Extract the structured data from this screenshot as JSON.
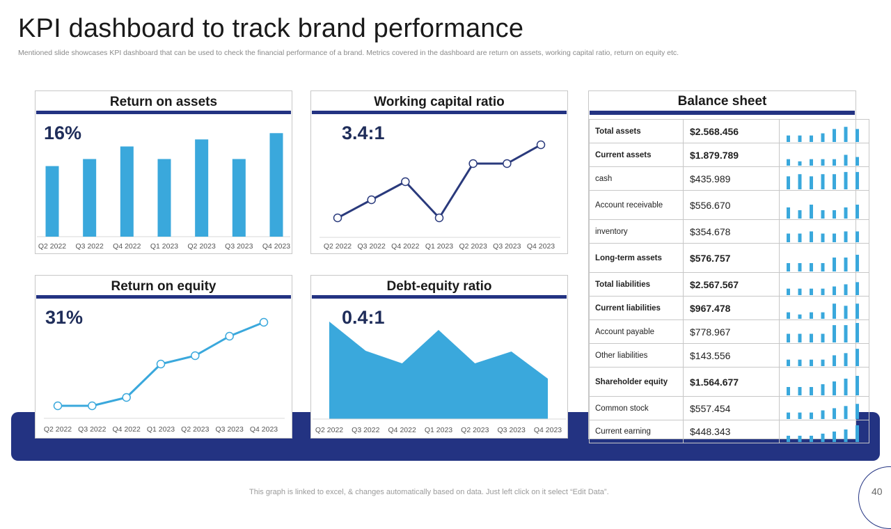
{
  "page": {
    "title": "KPI dashboard to track brand performance",
    "subtitle": "Mentioned slide showcases KPI dashboard that can be used to check the financial performance of a brand. Metrics covered in the dashboard are return on assets, working capital ratio, return on equity etc.",
    "footer_note": "This graph is linked to excel, & changes automatically based on data. Just left click on it select “Edit Data”.",
    "page_number": "40"
  },
  "colors": {
    "navy": "#233382",
    "bar_blue": "#3aa8dc",
    "line_navy": "#2a3a7c",
    "grid": "#d9d9d9"
  },
  "panels": {
    "roa": {
      "title": "Return on assets",
      "value": "16%"
    },
    "wcr": {
      "title": "Working capital ratio",
      "value": "3.4:1"
    },
    "roe": {
      "title": "Return on equity",
      "value": "31%"
    },
    "der": {
      "title": "Debt-equity ratio",
      "value": "0.4:1"
    },
    "balance": {
      "title": "Balance sheet"
    }
  },
  "chart_data": [
    {
      "id": "roa",
      "type": "bar",
      "title": "Return on assets",
      "categories": [
        "Q2 2022",
        "Q3 2022",
        "Q4 2022",
        "Q1 2023",
        "Q2 2023",
        "Q3 2023",
        "Q4 2023"
      ],
      "values": [
        90,
        99,
        115,
        99,
        124,
        99,
        132
      ],
      "ylim": [
        0,
        150
      ],
      "grid": false
    },
    {
      "id": "wcr",
      "type": "line",
      "title": "Working capital ratio",
      "categories": [
        "Q2 2022",
        "Q3 2022",
        "Q4 2022",
        "Q1 2023",
        "Q2 2023",
        "Q3 2023",
        "Q4 2023"
      ],
      "values": [
        28,
        54,
        80,
        28,
        106,
        106,
        133
      ],
      "ylim": [
        0,
        160
      ],
      "grid": false
    },
    {
      "id": "roe",
      "type": "line",
      "title": "Return on equity",
      "categories": [
        "Q2 2022",
        "Q3 2022",
        "Q4 2022",
        "Q1 2023",
        "Q2 2023",
        "Q3 2023",
        "Q4 2023"
      ],
      "values": [
        18,
        18,
        30,
        78,
        90,
        118,
        138
      ],
      "ylim": [
        0,
        160
      ],
      "grid": false
    },
    {
      "id": "der",
      "type": "area",
      "title": "Debt-equity ratio",
      "categories": [
        "Q2 2022",
        "Q3 2022",
        "Q4 2022",
        "Q1 2023",
        "Q2 2023",
        "Q3 2023",
        "Q4 2023"
      ],
      "values": [
        140,
        98,
        80,
        128,
        80,
        97,
        58
      ],
      "ylim": [
        0,
        150
      ],
      "grid": false
    }
  ],
  "balance_sheet": {
    "rows": [
      {
        "label": "Total assets",
        "value": "$2.568.456",
        "bold": true,
        "spark": [
          3,
          3,
          3,
          4,
          6,
          7,
          6
        ]
      },
      {
        "label": "Current assets",
        "value": "$1.879.789",
        "bold": true,
        "spark": [
          3,
          2,
          3,
          3,
          3,
          5,
          4
        ]
      },
      {
        "label": "cash",
        "value": "$435.989",
        "bold": false,
        "spark": [
          6,
          7,
          6,
          7,
          7,
          8,
          8
        ]
      },
      {
        "label": "Account receivable",
        "value": "$556.670",
        "bold": false,
        "spark": [
          4,
          3,
          5,
          3,
          3,
          4,
          5
        ]
      },
      {
        "label": "inventory",
        "value": "$354.678",
        "bold": false,
        "spark": [
          4,
          4,
          5,
          4,
          4,
          5,
          5
        ]
      },
      {
        "label": "Long-term assets",
        "value": "$576.757",
        "bold": true,
        "spark": [
          3,
          3,
          3,
          3,
          5,
          5,
          6
        ]
      },
      {
        "label": "Total liabilities",
        "value": "$2.567.567",
        "bold": true,
        "spark": [
          3,
          3,
          3,
          3,
          4,
          5,
          6
        ]
      },
      {
        "label": "Current liabilities",
        "value": "$967.478",
        "bold": true,
        "spark": [
          3,
          2,
          3,
          3,
          7,
          6,
          7
        ]
      },
      {
        "label": "Account payable",
        "value": "$778.967",
        "bold": false,
        "spark": [
          4,
          4,
          4,
          4,
          8,
          8,
          9
        ]
      },
      {
        "label": "Other liabilities",
        "value": "$143.556",
        "bold": false,
        "spark": [
          3,
          3,
          3,
          3,
          5,
          6,
          8
        ]
      },
      {
        "label": "Shareholder equity",
        "value": "$1.564.677",
        "bold": true,
        "spark": [
          3,
          3,
          3,
          4,
          5,
          6,
          7
        ]
      },
      {
        "label": "Common stock",
        "value": "$557.454",
        "bold": false,
        "spark": [
          3,
          3,
          3,
          4,
          5,
          6,
          7
        ]
      },
      {
        "label": "Current earning",
        "value": "$448.343",
        "bold": false,
        "spark": [
          3,
          3,
          3,
          4,
          5,
          6,
          8
        ]
      }
    ]
  }
}
